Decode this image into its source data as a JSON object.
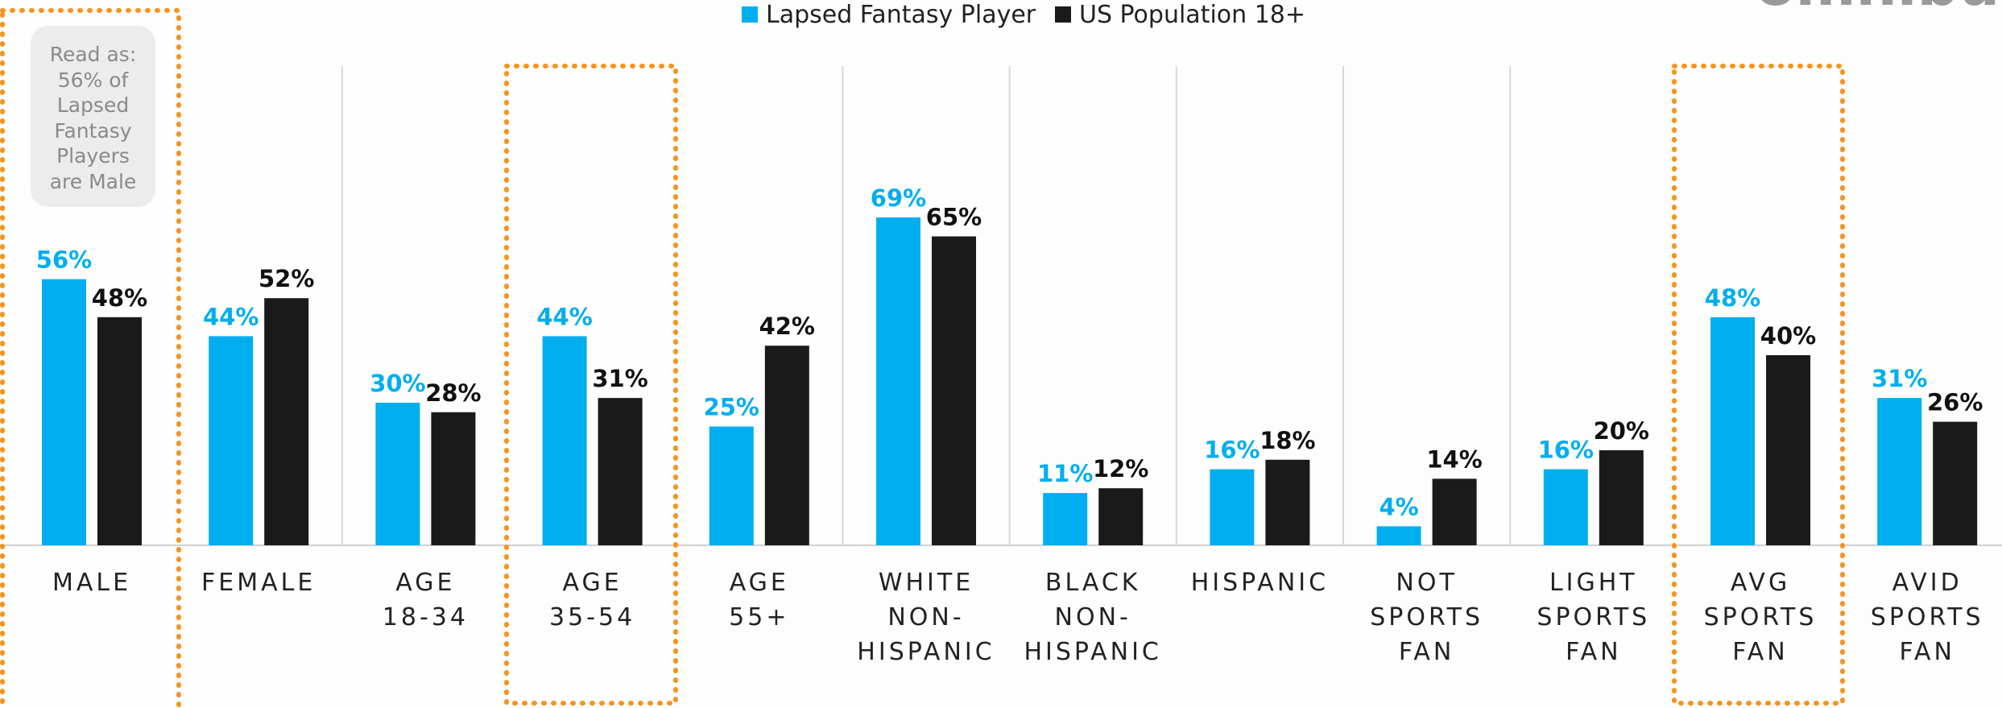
{
  "chart_data": {
    "type": "bar",
    "logo": "omnibus",
    "annotation": "Read as:\n56% of\nLapsed\nFantasy\nPlayers\nare Male",
    "categories": [
      "MALE",
      "FEMALE",
      "AGE\n18-34",
      "AGE\n35-54",
      "AGE\n55+",
      "WHITE\nNON-\nHISPANIC",
      "BLACK\nNON-\nHISPANIC",
      "HISPANIC",
      "NOT\nSPORTS\nFAN",
      "LIGHT\nSPORTS\nFAN",
      "AVG\nSPORTS\nFAN",
      "AVID\nSPORTS\nFAN"
    ],
    "series": [
      {
        "name": "Lapsed Fantasy Player",
        "color": "#00aeef",
        "values": [
          56,
          44,
          30,
          44,
          25,
          69,
          11,
          16,
          4,
          16,
          48,
          31
        ],
        "value_labels": [
          "56%",
          "44%",
          "30%",
          "44%",
          "25%",
          "69%",
          "11%",
          "16%",
          "4%",
          "16%",
          "48%",
          "31%"
        ]
      },
      {
        "name": "US Population 18+",
        "color": "#1a1a1a",
        "values": [
          48,
          52,
          28,
          31,
          42,
          65,
          12,
          18,
          14,
          20,
          40,
          26
        ],
        "value_labels": [
          "48%",
          "52%",
          "28%",
          "31%",
          "42%",
          "65%",
          "12%",
          "18%",
          "14%",
          "20%",
          "40%",
          "26%"
        ]
      }
    ],
    "ylim": [
      0,
      100
    ],
    "legend": "top"
  }
}
